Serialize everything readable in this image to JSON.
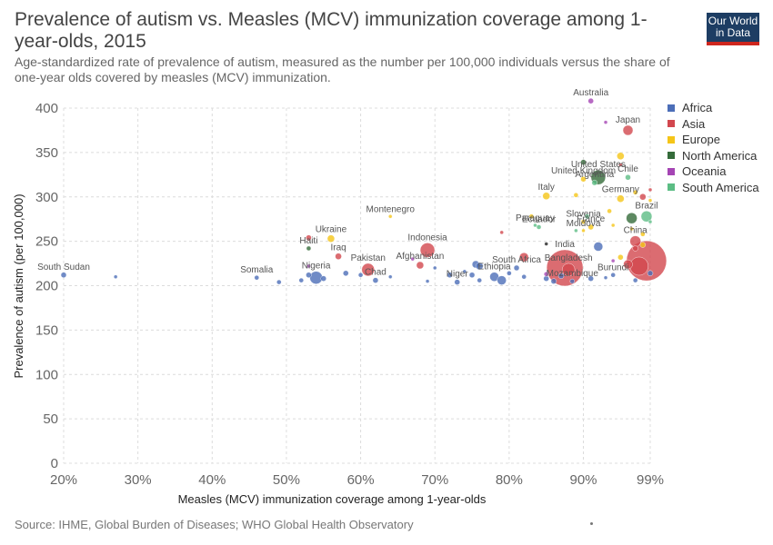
{
  "header": {
    "title": "Prevalence of autism vs. Measles (MCV) immunization coverage among 1-year-olds, 2015",
    "subtitle": "Age-standardized rate of prevalence of autism, measured as the number per 100,000 individuals versus the share of one-year olds covered by measles (MCV) immunization.",
    "logo_line1": "Our World",
    "logo_line2": "in Data"
  },
  "footer": {
    "source": "Source: IHME, Global Burden of Diseases; WHO Global Health Observatory"
  },
  "colors": {
    "Africa": "#4c6eb8",
    "Asia": "#d2474e",
    "Europe": "#f5c518",
    "North America": "#356b3a",
    "Oceania": "#a545b4",
    "South America": "#5cbd84",
    "Unlabeled": "#222222"
  },
  "chart_data": {
    "type": "scatter",
    "title": "Prevalence of autism vs. Measles (MCV) immunization coverage among 1-year-olds, 2015",
    "xlabel": "Measles (MCV) immunization coverage among 1-year-olds",
    "ylabel": "Prevalence of autism (per 100,000)",
    "xlim": [
      20,
      99
    ],
    "ylim": [
      0,
      400
    ],
    "x_ticks": [
      20,
      30,
      40,
      50,
      60,
      70,
      80,
      90,
      99
    ],
    "x_tick_labels": [
      "20%",
      "30%",
      "40%",
      "50%",
      "60%",
      "70%",
      "80%",
      "90%",
      "99%"
    ],
    "y_ticks": [
      0,
      50,
      100,
      150,
      200,
      250,
      300,
      350,
      400
    ],
    "y_tick_labels": [
      "0",
      "50",
      "100",
      "150",
      "200",
      "250",
      "300",
      "350",
      "400"
    ],
    "grid": true,
    "legend_position": "right",
    "legend": [
      "Africa",
      "Asia",
      "Europe",
      "North America",
      "Oceania",
      "South America"
    ],
    "points": [
      {
        "label": "South Sudan",
        "region": "Africa",
        "x": 20,
        "y": 212,
        "r": 3
      },
      {
        "label": "",
        "region": "Africa",
        "x": 27,
        "y": 210,
        "r": 2
      },
      {
        "label": "Somalia",
        "region": "Africa",
        "x": 46,
        "y": 209,
        "r": 2.5
      },
      {
        "label": "",
        "region": "Africa",
        "x": 49,
        "y": 204,
        "r": 2.5
      },
      {
        "label": "",
        "region": "Africa",
        "x": 52,
        "y": 206,
        "r": 2.5
      },
      {
        "label": "",
        "region": "Africa",
        "x": 53,
        "y": 212,
        "r": 3
      },
      {
        "label": "Nigeria",
        "region": "Africa",
        "x": 54,
        "y": 209,
        "r": 7
      },
      {
        "label": "",
        "region": "Africa",
        "x": 55,
        "y": 208,
        "r": 3
      },
      {
        "label": "Haiti",
        "region": "North America",
        "x": 53,
        "y": 242,
        "r": 2.5
      },
      {
        "label": "",
        "region": "Asia",
        "x": 53,
        "y": 254,
        "r": 3
      },
      {
        "label": "Ukraine",
        "region": "Europe",
        "x": 56,
        "y": 253,
        "r": 4
      },
      {
        "label": "Iraq",
        "region": "Asia",
        "x": 57,
        "y": 233,
        "r": 3.5
      },
      {
        "label": "",
        "region": "Oceania",
        "x": 53,
        "y": 222,
        "r": 2
      },
      {
        "label": "",
        "region": "Africa",
        "x": 58,
        "y": 214,
        "r": 3
      },
      {
        "label": "Pakistan",
        "region": "Asia",
        "x": 61,
        "y": 218,
        "r": 7
      },
      {
        "label": "",
        "region": "Africa",
        "x": 60,
        "y": 212,
        "r": 2.5
      },
      {
        "label": "Chad",
        "region": "Africa",
        "x": 62,
        "y": 206,
        "r": 3
      },
      {
        "label": "",
        "region": "Africa",
        "x": 64,
        "y": 210,
        "r": 2
      },
      {
        "label": "Montenegro",
        "region": "Europe",
        "x": 64,
        "y": 278,
        "r": 2
      },
      {
        "label": "Indonesia",
        "region": "Asia",
        "x": 69,
        "y": 240,
        "r": 8
      },
      {
        "label": "Afghanistan",
        "region": "Asia",
        "x": 68,
        "y": 223,
        "r": 4
      },
      {
        "label": "",
        "region": "Oceania",
        "x": 67,
        "y": 230,
        "r": 2
      },
      {
        "label": "",
        "region": "Africa",
        "x": 69,
        "y": 205,
        "r": 2
      },
      {
        "label": "",
        "region": "Africa",
        "x": 70,
        "y": 220,
        "r": 2
      },
      {
        "label": "",
        "region": "Africa",
        "x": 72,
        "y": 212,
        "r": 3
      },
      {
        "label": "Niger",
        "region": "Africa",
        "x": 73,
        "y": 204,
        "r": 3
      },
      {
        "label": "",
        "region": "Africa",
        "x": 74,
        "y": 216,
        "r": 2
      },
      {
        "label": "",
        "region": "Africa",
        "x": 75,
        "y": 212,
        "r": 3
      },
      {
        "label": "",
        "region": "Africa",
        "x": 75.5,
        "y": 224,
        "r": 4
      },
      {
        "label": "",
        "region": "Africa",
        "x": 76,
        "y": 222,
        "r": 4
      },
      {
        "label": "",
        "region": "Africa",
        "x": 76,
        "y": 206,
        "r": 2.5
      },
      {
        "label": "Ethiopia",
        "region": "Africa",
        "x": 78,
        "y": 210,
        "r": 5
      },
      {
        "label": "",
        "region": "Africa",
        "x": 79,
        "y": 206,
        "r": 5
      },
      {
        "label": "",
        "region": "Africa",
        "x": 80,
        "y": 214,
        "r": 2.5
      },
      {
        "label": "",
        "region": "Asia",
        "x": 79,
        "y": 260,
        "r": 2
      },
      {
        "label": "South Africa",
        "region": "Africa",
        "x": 81,
        "y": 220,
        "r": 3
      },
      {
        "label": "",
        "region": "Asia",
        "x": 82,
        "y": 232,
        "r": 5
      },
      {
        "label": "",
        "region": "Africa",
        "x": 82,
        "y": 210,
        "r": 2.5
      },
      {
        "label": "",
        "region": "Europe",
        "x": 83,
        "y": 278,
        "r": 2.5
      },
      {
        "label": "Paraguay",
        "region": "South America",
        "x": 83.5,
        "y": 268,
        "r": 2
      },
      {
        "label": "Ecuador",
        "region": "South America",
        "x": 84,
        "y": 266,
        "r": 2.5
      },
      {
        "label": "",
        "region": "Unlabeled",
        "x": 85,
        "y": 247,
        "r": 2
      },
      {
        "label": "",
        "region": "Africa",
        "x": 85,
        "y": 208,
        "r": 3
      },
      {
        "label": "",
        "region": "Oceania",
        "x": 85,
        "y": 213,
        "r": 2.5
      },
      {
        "label": "",
        "region": "Africa",
        "x": 86,
        "y": 205,
        "r": 3
      },
      {
        "label": "Italy",
        "region": "Europe",
        "x": 85,
        "y": 301,
        "r": 4
      },
      {
        "label": "India",
        "region": "Asia",
        "x": 87.5,
        "y": 220,
        "r": 20
      },
      {
        "label": "Bangladesh",
        "region": "Asia",
        "x": 88,
        "y": 218,
        "r": 7
      },
      {
        "label": "Mozambique",
        "region": "Africa",
        "x": 88.5,
        "y": 205,
        "r": 2.5
      },
      {
        "label": "",
        "region": "Africa",
        "x": 87,
        "y": 211,
        "r": 3
      },
      {
        "label": "",
        "region": "Europe",
        "x": 89,
        "y": 302,
        "r": 2.5
      },
      {
        "label": "",
        "region": "South America",
        "x": 89,
        "y": 262,
        "r": 2
      },
      {
        "label": "Moldova",
        "region": "Europe",
        "x": 90,
        "y": 262,
        "r": 2
      },
      {
        "label": "Slovenia",
        "region": "Europe",
        "x": 90,
        "y": 272,
        "r": 2.5
      },
      {
        "label": "",
        "region": "South America",
        "x": 90.5,
        "y": 278,
        "r": 2.5
      },
      {
        "label": "France",
        "region": "Europe",
        "x": 91,
        "y": 266,
        "r": 3
      },
      {
        "label": "United Kingdom",
        "region": "Europe",
        "x": 90,
        "y": 320,
        "r": 3
      },
      {
        "label": "United States",
        "region": "North America",
        "x": 92,
        "y": 322,
        "r": 8
      },
      {
        "label": "",
        "region": "North America",
        "x": 90,
        "y": 339,
        "r": 3
      },
      {
        "label": "Argentina",
        "region": "South America",
        "x": 91.5,
        "y": 316,
        "r": 3
      },
      {
        "label": "Germany",
        "region": "Europe",
        "x": 95,
        "y": 298,
        "r": 4
      },
      {
        "label": "Australia",
        "region": "Oceania",
        "x": 91,
        "y": 408,
        "r": 3
      },
      {
        "label": "Japan",
        "region": "Asia",
        "x": 96,
        "y": 375,
        "r": 5.5
      },
      {
        "label": "",
        "region": "Oceania",
        "x": 93,
        "y": 384,
        "r": 2
      },
      {
        "label": "",
        "region": "Europe",
        "x": 95,
        "y": 346,
        "r": 4
      },
      {
        "label": "Chile",
        "region": "South America",
        "x": 96,
        "y": 322,
        "r": 3
      },
      {
        "label": "",
        "region": "Asia",
        "x": 95,
        "y": 336,
        "r": 2
      },
      {
        "label": "China",
        "region": "Asia",
        "x": 97,
        "y": 250,
        "r": 6
      },
      {
        "label": "",
        "region": "Africa",
        "x": 92,
        "y": 244,
        "r": 5
      },
      {
        "label": "Brazil",
        "region": "South America",
        "x": 98.5,
        "y": 278,
        "r": 6
      },
      {
        "label": "",
        "region": "North America",
        "x": 96.5,
        "y": 276,
        "r": 6
      },
      {
        "label": "",
        "region": "Asia",
        "x": 98,
        "y": 300,
        "r": 3.5
      },
      {
        "label": "",
        "region": "Europe",
        "x": 97,
        "y": 305,
        "r": 2.5
      },
      {
        "label": "",
        "region": "Europe",
        "x": 96.5,
        "y": 264,
        "r": 2
      },
      {
        "label": "",
        "region": "Europe",
        "x": 98,
        "y": 258,
        "r": 2.5
      },
      {
        "label": "",
        "region": "Asia",
        "x": 97,
        "y": 242,
        "r": 3
      },
      {
        "label": "",
        "region": "Asia",
        "x": 98.5,
        "y": 228,
        "r": 22
      },
      {
        "label": "",
        "region": "Asia",
        "x": 97.5,
        "y": 222,
        "r": 10
      },
      {
        "label": "",
        "region": "Asia",
        "x": 96,
        "y": 224,
        "r": 5
      },
      {
        "label": "",
        "region": "Europe",
        "x": 95,
        "y": 232,
        "r": 3
      },
      {
        "label": "",
        "region": "Europe",
        "x": 98,
        "y": 246,
        "r": 3
      },
      {
        "label": "Burundi",
        "region": "Africa",
        "x": 94,
        "y": 212,
        "r": 2.5
      },
      {
        "label": "",
        "region": "Africa",
        "x": 99,
        "y": 214,
        "r": 3
      },
      {
        "label": "",
        "region": "Africa",
        "x": 97,
        "y": 206,
        "r": 2.5
      },
      {
        "label": "",
        "region": "Africa",
        "x": 93,
        "y": 209,
        "r": 2
      },
      {
        "label": "",
        "region": "Africa",
        "x": 91,
        "y": 208,
        "r": 3
      },
      {
        "label": "",
        "region": "Europe",
        "x": 94,
        "y": 268,
        "r": 2
      },
      {
        "label": "",
        "region": "South America",
        "x": 99,
        "y": 272,
        "r": 2
      },
      {
        "label": "",
        "region": "Europe",
        "x": 99,
        "y": 296,
        "r": 2
      },
      {
        "label": "",
        "region": "Asia",
        "x": 99,
        "y": 308,
        "r": 2
      },
      {
        "label": "",
        "region": "Europe",
        "x": 93.5,
        "y": 284,
        "r": 2.5
      },
      {
        "label": "",
        "region": "Oceania",
        "x": 94,
        "y": 228,
        "r": 2
      }
    ]
  }
}
